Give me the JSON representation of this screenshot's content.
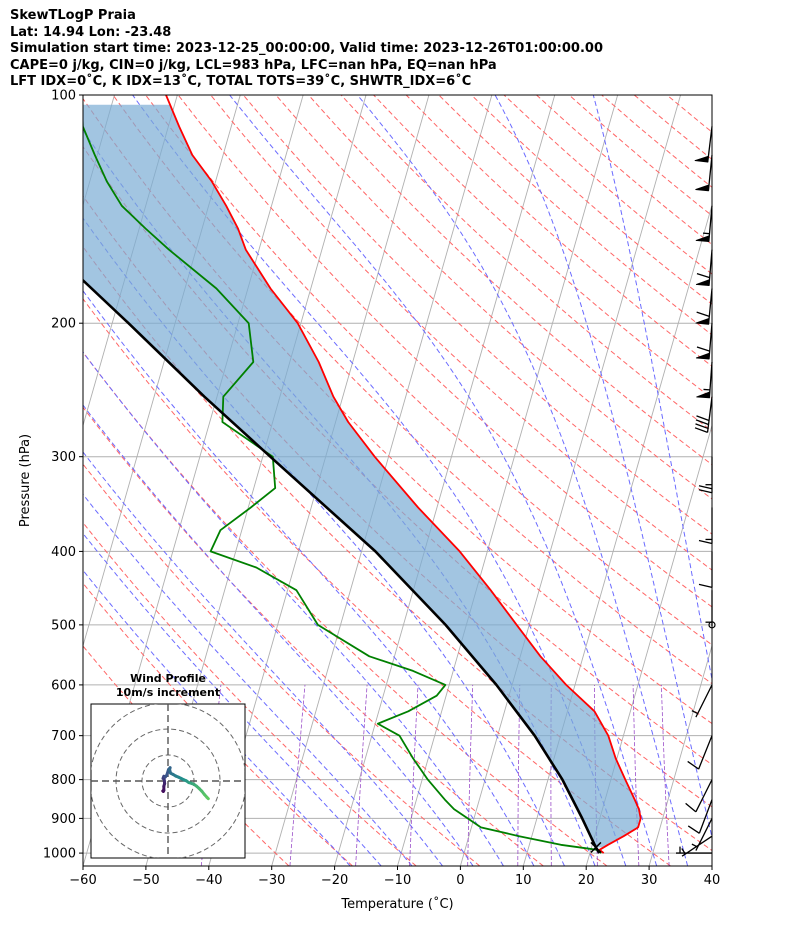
{
  "header": {
    "lines": [
      "SkewTLogP Praia",
      "Lat: 14.94   Lon: -23.48",
      "Simulation start time: 2023-12-25_00:00:00, Valid time: 2023-12-26T01:00:00.00",
      "CAPE=0 j/kg, CIN=0 j/kg, LCL=983 hPa, LFC=nan hPa, EQ=nan hPa",
      "LFT IDX=0˚C, K IDX=13˚C, TOTAL TOTS=39˚C, SHWTR_IDX=6˚C"
    ]
  },
  "chart_data": [
    {
      "type": "line",
      "subtype": "skew-T log-P",
      "xlabel": "Temperature (˚C)",
      "ylabel": "Pressure (hPa)",
      "xlim": [
        -60,
        40
      ],
      "ylim": [
        1040,
        100
      ],
      "yscale": "log",
      "skew": 35,
      "x_ticks": [
        -60,
        -50,
        -40,
        -30,
        -20,
        -10,
        0,
        10,
        20,
        30,
        40
      ],
      "x_tick_labels": [
        "−60",
        "−50",
        "−40",
        "−30",
        "−20",
        "−10",
        "0",
        "10",
        "20",
        "30",
        "40"
      ],
      "y_ticks": [
        1000,
        900,
        800,
        700,
        600,
        500,
        400,
        300,
        200,
        100
      ],
      "y_tick_labels": [
        "1000",
        "900",
        "800",
        "700",
        "600",
        "500",
        "400",
        "300",
        "200",
        "100"
      ],
      "grid": true,
      "colors": {
        "temperature": "#ff0000",
        "dewpoint": "#008000",
        "parcel": "#000000",
        "cape_fill": "#7aadd4",
        "dry_adiabats": "#ff6666",
        "moist_adiabats": "#6b6bff",
        "mixing_ratio": "#9b4fc9",
        "isotherms": "#b0b0b0"
      },
      "series": [
        {
          "p": [
            1000,
            990,
            975,
            950,
            925,
            900,
            875,
            850,
            800,
            750,
            700,
            650,
            600,
            550,
            500,
            450,
            400,
            350,
            300,
            270,
            250,
            225,
            200,
            180,
            160,
            150,
            140,
            130,
            120,
            110,
            100
          ],
          "T": [
            22.2,
            21.4,
            22.5,
            24.6,
            26.5,
            26.5,
            25.8,
            24.7,
            22.3,
            19.8,
            17.6,
            14.3,
            8.6,
            3.2,
            -2.0,
            -7.7,
            -14.4,
            -23.0,
            -32.2,
            -38.0,
            -41.5,
            -45.4,
            -50.5,
            -56.4,
            -62.1,
            -64.3,
            -67.2,
            -70.6,
            -74.9,
            -78.3,
            -81.8
          ]
        },
        {
          "p": [
            1000,
            990,
            975,
            950,
            925,
            900,
            875,
            850,
            800,
            750,
            700,
            675,
            650,
            620,
            600,
            575,
            550,
            500,
            450,
            420,
            400,
            375,
            350,
            330,
            300,
            270,
            250,
            225,
            200,
            180,
            160,
            150,
            140,
            130,
            120,
            110,
            100
          ],
          "Td": [
            21.8,
            21.0,
            15.0,
            8.0,
            1.5,
            -1.0,
            -3.6,
            -5.5,
            -9.1,
            -12.4,
            -15.6,
            -19.6,
            -15.3,
            -11.5,
            -10.6,
            -16.4,
            -24.0,
            -33.6,
            -38.6,
            -46.0,
            -54.0,
            -53.4,
            -49.6,
            -46.6,
            -48.4,
            -58.0,
            -59.0,
            -55.8,
            -58.3,
            -65.0,
            -74.3,
            -79.0,
            -83.8,
            -87.3,
            -90.4,
            -93.6,
            -95.2
          ]
        },
        {
          "p": [
            1000,
            983,
            900,
            800,
            700,
            600,
            500,
            400,
            300,
            250,
            200,
            150,
            120,
            100
          ],
          "T": [
            21.5,
            20.7,
            17.2,
            12.3,
            5.9,
            -2.5,
            -13.3,
            -27.8,
            -48.8,
            -62.0,
            -77.4,
            -97.7,
            -113.9,
            -127.1
          ]
        }
      ],
      "wind_barbs": {
        "p": [
          1000,
          950,
          900,
          850,
          800,
          700,
          600,
          500,
          450,
          400,
          350,
          300,
          250,
          225,
          200,
          180,
          160,
          140,
          120,
          110
        ],
        "u_kt": [
          7,
          6,
          2,
          3,
          5,
          4,
          3,
          0,
          0,
          0,
          0,
          0,
          5,
          4,
          5,
          6,
          5,
          5,
          5,
          6
        ],
        "v_kt": [
          0,
          4,
          4,
          8,
          10,
          10,
          6,
          0,
          3,
          10,
          15,
          25,
          40,
          55,
          60,
          62,
          60,
          56,
          50,
          50
        ]
      }
    },
    {
      "type": "line",
      "subtype": "hodograph",
      "title": "Wind Profile",
      "subtitle": "10m/s increment",
      "ring_increment_ms": 10,
      "u_ms": [
        -2.0,
        -1.8,
        -1.6,
        -1.6,
        -1.3,
        -1.4,
        -1.5,
        -1.9,
        -1.6,
        -1.0,
        -0.5,
        0.2,
        0.8,
        0.6,
        1.0,
        2.0,
        3.0,
        4.0,
        5.0,
        6.0,
        7.0,
        8.0,
        9.0,
        10.0,
        11.0,
        12.0,
        13.0,
        14.0,
        15.0,
        15.5
      ],
      "v_ms": [
        -3.8,
        -4.0,
        -3.6,
        -2.0,
        -1.0,
        0.0,
        0.8,
        1.0,
        1.8,
        1.6,
        2.2,
        4.4,
        5.1,
        4.4,
        3.0,
        2.5,
        1.9,
        1.5,
        1.0,
        0.5,
        0.1,
        -0.6,
        -0.9,
        -1.3,
        -2.0,
        -2.9,
        -3.9,
        -5.2,
        -6.3,
        -6.8
      ]
    }
  ]
}
